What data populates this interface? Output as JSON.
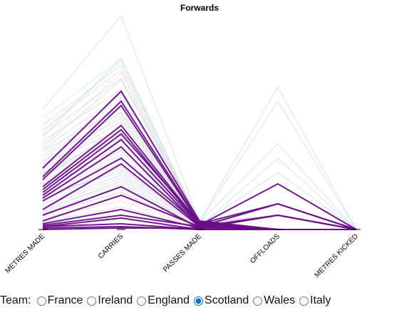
{
  "chart_data": {
    "type": "parallel-coordinates",
    "title": "Forwards",
    "axes": [
      "METRES MADE",
      "CARRIES",
      "PASSES MADE",
      "OFFLOADS",
      "METRES KICKED"
    ],
    "ylim": [
      0,
      1
    ],
    "grid": false,
    "highlight_team": "Scotland",
    "team_colors": {
      "France": "#c6d8ee",
      "Ireland": "#cfe9dc",
      "England": "#f1ccd6",
      "Scotland": "#6a0f87",
      "Wales": "#e2c2c8",
      "Italy": "#cdd8e6"
    },
    "background_color": "#d6dde4",
    "series": [
      {
        "team": "Scotland",
        "values": [
          0.43,
          0.97,
          0.06,
          0.0,
          0.0
        ]
      },
      {
        "team": "Scotland",
        "values": [
          0.35,
          0.87,
          0.04,
          0.0,
          0.0
        ]
      },
      {
        "team": "Scotland",
        "values": [
          0.3,
          0.73,
          0.04,
          0.18,
          0.0
        ]
      },
      {
        "team": "Scotland",
        "values": [
          0.28,
          0.7,
          0.03,
          0.0,
          0.0
        ]
      },
      {
        "team": "Scotland",
        "values": [
          0.24,
          0.63,
          0.03,
          0.32,
          0.0
        ]
      },
      {
        "team": "Scotland",
        "values": [
          0.22,
          0.58,
          0.02,
          0.18,
          0.0
        ]
      },
      {
        "team": "Scotland",
        "values": [
          0.2,
          0.5,
          0.03,
          0.0,
          0.0
        ]
      },
      {
        "team": "Scotland",
        "values": [
          0.14,
          0.46,
          0.02,
          0.1,
          0.0
        ]
      },
      {
        "team": "Scotland",
        "values": [
          0.1,
          0.3,
          0.01,
          0.1,
          0.0
        ]
      },
      {
        "team": "Scotland",
        "values": [
          0.06,
          0.24,
          0.02,
          0.0,
          0.0
        ]
      },
      {
        "team": "Scotland",
        "values": [
          0.04,
          0.14,
          0.01,
          0.1,
          0.0
        ]
      },
      {
        "team": "Scotland",
        "values": [
          0.02,
          0.08,
          0.0,
          0.0,
          0.0
        ]
      },
      {
        "team": "Scotland",
        "values": [
          0.02,
          0.04,
          0.0,
          0.0,
          0.0
        ]
      },
      {
        "team": "Scotland",
        "values": [
          0.01,
          0.02,
          0.0,
          0.0,
          0.0
        ]
      },
      {
        "team": "Scotland",
        "values": [
          0.0,
          0.01,
          0.01,
          0.0,
          0.0
        ]
      },
      {
        "team": "Scotland",
        "values": [
          0.03,
          0.1,
          0.02,
          0.0,
          0.0
        ]
      },
      {
        "team": "Scotland",
        "values": [
          0.26,
          0.67,
          0.05,
          0.0,
          0.0
        ]
      },
      {
        "team": "Scotland",
        "values": [
          0.37,
          0.9,
          0.05,
          0.0,
          0.0
        ]
      },
      {
        "team": "France",
        "values": [
          0.84,
          1.5,
          0.06,
          1.0,
          0.0
        ]
      },
      {
        "team": "France",
        "values": [
          0.73,
          1.15,
          0.05,
          0.9,
          0.0
        ]
      },
      {
        "team": "France",
        "values": [
          0.65,
          1.2,
          0.03,
          0.4,
          0.0
        ]
      },
      {
        "team": "France",
        "values": [
          0.55,
          0.85,
          0.02,
          0.5,
          0.0
        ]
      },
      {
        "team": "France",
        "values": [
          0.46,
          0.7,
          0.04,
          0.0,
          0.0
        ]
      },
      {
        "team": "France",
        "values": [
          0.38,
          0.64,
          0.02,
          0.1,
          0.0
        ]
      },
      {
        "team": "France",
        "values": [
          0.3,
          0.55,
          0.04,
          0.0,
          0.0
        ]
      },
      {
        "team": "France",
        "values": [
          0.22,
          0.42,
          0.03,
          0.1,
          0.0
        ]
      },
      {
        "team": "France",
        "values": [
          0.18,
          0.38,
          0.02,
          0.0,
          0.0
        ]
      },
      {
        "team": "France",
        "values": [
          0.12,
          0.3,
          0.01,
          0.0,
          0.0
        ]
      },
      {
        "team": "Ireland",
        "values": [
          0.78,
          1.2,
          0.05,
          0.0,
          0.0
        ]
      },
      {
        "team": "Ireland",
        "values": [
          0.68,
          1.18,
          0.04,
          0.1,
          0.0
        ]
      },
      {
        "team": "Ireland",
        "values": [
          0.6,
          1.1,
          0.03,
          0.0,
          0.0
        ]
      },
      {
        "team": "Ireland",
        "values": [
          0.52,
          0.92,
          0.04,
          0.0,
          0.0
        ]
      },
      {
        "team": "Ireland",
        "values": [
          0.44,
          0.8,
          0.02,
          0.1,
          0.0
        ]
      },
      {
        "team": "Ireland",
        "values": [
          0.36,
          0.72,
          0.03,
          0.0,
          0.0
        ]
      },
      {
        "team": "Ireland",
        "values": [
          0.25,
          0.5,
          0.02,
          0.0,
          0.0
        ]
      },
      {
        "team": "Ireland",
        "values": [
          0.15,
          0.32,
          0.01,
          0.0,
          0.0
        ]
      },
      {
        "team": "England",
        "values": [
          0.7,
          1.12,
          0.04,
          0.0,
          0.0
        ]
      },
      {
        "team": "England",
        "values": [
          0.62,
          0.98,
          0.05,
          0.1,
          0.0
        ]
      },
      {
        "team": "England",
        "values": [
          0.5,
          0.88,
          0.03,
          0.0,
          0.0
        ]
      },
      {
        "team": "England",
        "values": [
          0.42,
          0.76,
          0.02,
          0.0,
          0.0
        ]
      },
      {
        "team": "England",
        "values": [
          0.34,
          0.6,
          0.04,
          0.1,
          0.0
        ]
      },
      {
        "team": "England",
        "values": [
          0.26,
          0.46,
          0.02,
          0.0,
          0.0
        ]
      },
      {
        "team": "England",
        "values": [
          0.16,
          0.36,
          0.01,
          0.0,
          0.0
        ]
      },
      {
        "team": "England",
        "values": [
          0.08,
          0.2,
          0.01,
          0.0,
          0.0
        ]
      },
      {
        "team": "Wales",
        "values": [
          0.58,
          1.05,
          0.06,
          0.0,
          0.0
        ]
      },
      {
        "team": "Wales",
        "values": [
          0.48,
          0.82,
          0.03,
          0.1,
          0.0
        ]
      },
      {
        "team": "Wales",
        "values": [
          0.4,
          0.68,
          0.02,
          0.0,
          0.0
        ]
      },
      {
        "team": "Wales",
        "values": [
          0.32,
          0.58,
          0.04,
          0.0,
          0.0
        ]
      },
      {
        "team": "Wales",
        "values": [
          0.21,
          0.44,
          0.02,
          0.1,
          0.0
        ]
      },
      {
        "team": "Wales",
        "values": [
          0.11,
          0.26,
          0.01,
          0.0,
          0.0
        ]
      },
      {
        "team": "Italy",
        "values": [
          0.66,
          1.06,
          0.05,
          0.6,
          0.0
        ]
      },
      {
        "team": "Italy",
        "values": [
          0.56,
          0.95,
          0.04,
          0.0,
          0.0
        ]
      },
      {
        "team": "Italy",
        "values": [
          0.47,
          0.78,
          0.03,
          0.1,
          0.0
        ]
      },
      {
        "team": "Italy",
        "values": [
          0.39,
          0.66,
          0.02,
          0.0,
          0.0
        ]
      },
      {
        "team": "Italy",
        "values": [
          0.31,
          0.52,
          0.03,
          0.0,
          0.0
        ]
      },
      {
        "team": "Italy",
        "values": [
          0.24,
          0.4,
          0.02,
          0.0,
          0.0
        ]
      },
      {
        "team": "Italy",
        "values": [
          0.13,
          0.34,
          0.01,
          0.0,
          0.0
        ]
      },
      {
        "team": "Italy",
        "values": [
          0.05,
          0.16,
          0.01,
          0.0,
          0.0
        ]
      }
    ]
  },
  "controls": {
    "team_label": "Team:",
    "options": [
      "France",
      "Ireland",
      "England",
      "Scotland",
      "Wales",
      "Italy"
    ],
    "selected": "Scotland"
  }
}
